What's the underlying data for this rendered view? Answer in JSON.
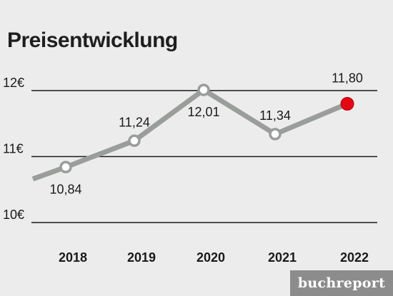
{
  "chart_data": {
    "type": "line",
    "title": "Preisentwicklung",
    "categories": [
      "2018",
      "2019",
      "2020",
      "2021",
      "2022"
    ],
    "values": [
      10.84,
      11.24,
      12.01,
      11.34,
      11.8
    ],
    "value_labels": [
      "10,84",
      "11,24",
      "12,01",
      "11,34",
      "11,80"
    ],
    "series_start_value": 10.66,
    "y_ticks": [
      {
        "value": 12,
        "label": "12€"
      },
      {
        "value": 11,
        "label": "11€"
      },
      {
        "value": 10,
        "label": "10€"
      }
    ],
    "ylim": [
      10,
      12
    ],
    "grid": true,
    "colors": {
      "line": "#9a9e9b",
      "marker_fill": "#ffffff",
      "highlight": "#e30613",
      "gridline": "#1a1a1a"
    }
  },
  "brand": "buchreport"
}
